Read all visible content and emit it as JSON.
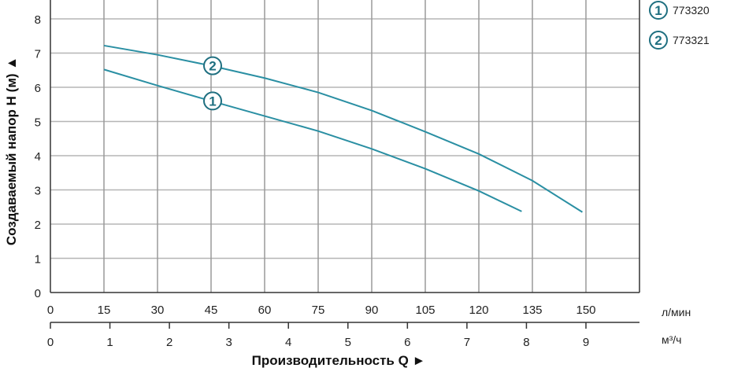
{
  "chart_data": {
    "type": "line",
    "ylabel": "Создаваемый напор H (м) ▲",
    "xlabel": "Производительность Q ►",
    "x_unit_primary": "л/мин",
    "x_unit_secondary": "м³/ч",
    "xlim": [
      0,
      165
    ],
    "ylim": [
      0,
      8
    ],
    "x_ticks": [
      0,
      15,
      30,
      45,
      60,
      75,
      90,
      105,
      120,
      135,
      150
    ],
    "x2_ticks": [
      0,
      1,
      2,
      3,
      4,
      5,
      6,
      7,
      8,
      9
    ],
    "y_ticks": [
      0,
      1,
      2,
      3,
      4,
      5,
      6,
      7,
      8
    ],
    "grid": true,
    "legend_placement": "top-right",
    "line_color": "#2a8fa3",
    "marker_color": "#1f6f80",
    "series": [
      {
        "name": "773320",
        "marker": "1",
        "marker_x": 45,
        "x": [
          15,
          30,
          45,
          60,
          75,
          90,
          105,
          120,
          132
        ],
        "y": [
          6.52,
          6.05,
          5.6,
          5.16,
          4.72,
          4.2,
          3.62,
          2.97,
          2.37
        ]
      },
      {
        "name": "773321",
        "marker": "2",
        "marker_x": 45,
        "x": [
          15,
          30,
          45,
          60,
          75,
          90,
          105,
          120,
          135,
          149
        ],
        "y": [
          7.22,
          6.95,
          6.63,
          6.27,
          5.85,
          5.32,
          4.7,
          4.05,
          3.27,
          2.35
        ]
      }
    ]
  }
}
